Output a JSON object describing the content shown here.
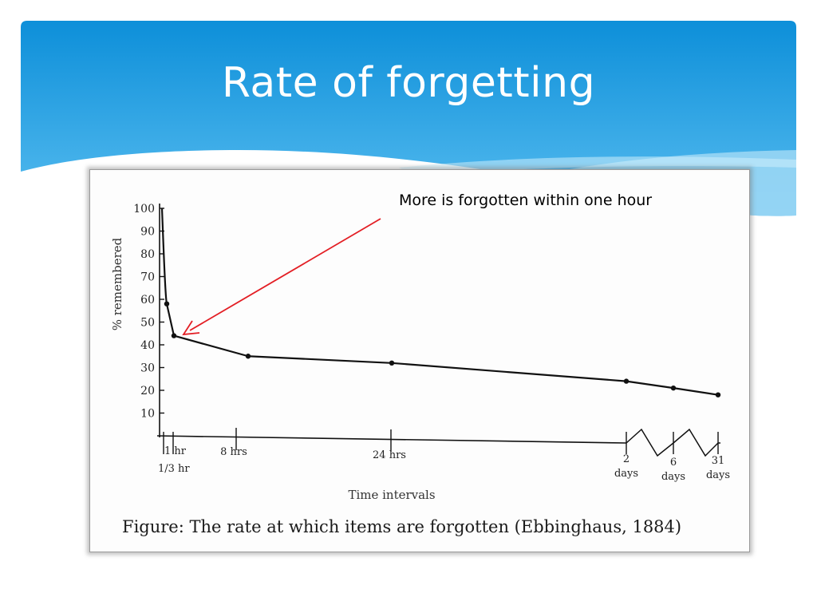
{
  "slide": {
    "title": "Rate of forgetting",
    "annotation": "More is forgotten within one hour",
    "caption": "Figure:  The rate at which items are forgotten (Ebbinghaus, 1884)"
  },
  "colors": {
    "header_top": "#0d8fd9",
    "header_bottom": "#58bdf0",
    "wave": "#9fd8f5",
    "annotation_arrow": "#e31e24",
    "curve": "#111111"
  },
  "chart_data": {
    "type": "line",
    "title": "",
    "xlabel": "Time intervals",
    "ylabel": "% remembered",
    "ylim": [
      0,
      100
    ],
    "yticks": [
      10,
      20,
      30,
      40,
      50,
      60,
      70,
      80,
      90,
      100
    ],
    "x": [
      "0",
      "1/3 hr",
      "1 hr",
      "8 hrs",
      "24 hrs",
      "2 days",
      "6 days",
      "31 days"
    ],
    "series": [
      {
        "values": [
          100,
          58,
          44,
          35,
          32,
          24,
          21,
          18
        ]
      }
    ],
    "x_tick_labels": [
      {
        "id": "third-hr",
        "lines": [
          "1/3 hr"
        ]
      },
      {
        "id": "1hr",
        "lines": [
          "1 hr"
        ]
      },
      {
        "id": "8hrs",
        "lines": [
          "8 hrs"
        ]
      },
      {
        "id": "24hrs",
        "lines": [
          "24 hrs"
        ]
      },
      {
        "id": "2days",
        "lines": [
          "2",
          "days"
        ]
      },
      {
        "id": "6days",
        "lines": [
          "6",
          "days"
        ]
      },
      {
        "id": "31days",
        "lines": [
          "31",
          "days"
        ]
      }
    ],
    "grid": false,
    "legend": "none"
  }
}
